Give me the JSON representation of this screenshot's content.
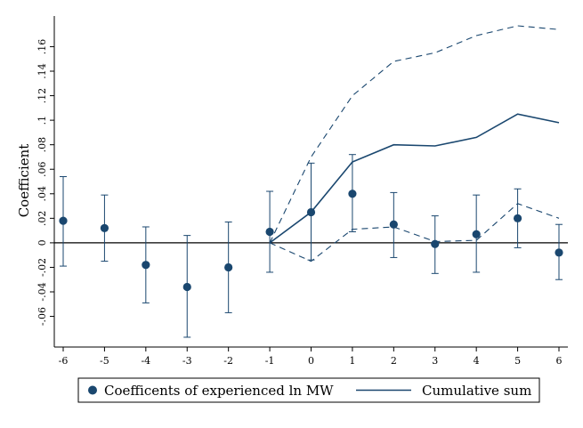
{
  "chart_data": {
    "type": "scatter",
    "title": "",
    "ylabel": "Coefficient",
    "xlabel": "",
    "x": [
      -6,
      -5,
      -4,
      -3,
      -2,
      -1,
      0,
      1,
      2,
      3,
      4,
      5,
      6
    ],
    "xlim": [
      -6,
      6
    ],
    "ylim": [
      -0.085,
      0.185
    ],
    "xticks": [
      "-6",
      "-5",
      "-4",
      "-3",
      "-2",
      "-1",
      "0",
      "1",
      "2",
      "3",
      "4",
      "5",
      "6"
    ],
    "yticks": [
      {
        "value": -0.06,
        "label": "-.06"
      },
      {
        "value": -0.04,
        "label": "-.04"
      },
      {
        "value": -0.02,
        "label": "-.02"
      },
      {
        "value": 0,
        "label": "0"
      },
      {
        "value": 0.02,
        "label": ".02"
      },
      {
        "value": 0.04,
        "label": ".04"
      },
      {
        "value": 0.06,
        "label": ".06"
      },
      {
        "value": 0.08,
        "label": ".08"
      },
      {
        "value": 0.1,
        "label": ".1"
      },
      {
        "value": 0.12,
        "label": ".12"
      },
      {
        "value": 0.14,
        "label": ".14"
      },
      {
        "value": 0.16,
        "label": ".16"
      }
    ],
    "grid": false,
    "zero_line": true,
    "colors": {
      "series": "#1a476f",
      "zero_line": "#000000"
    },
    "series": [
      {
        "name": "Coefficents of experienced ln MW",
        "kind": "point-with-ci",
        "values": [
          0.018,
          0.012,
          -0.018,
          -0.036,
          -0.02,
          0.009,
          0.025,
          0.04,
          0.015,
          -0.001,
          0.007,
          0.02,
          -0.008
        ],
        "ci_low": [
          -0.019,
          -0.015,
          -0.049,
          -0.077,
          -0.057,
          -0.024,
          -0.014,
          0.009,
          -0.012,
          -0.025,
          -0.024,
          -0.004,
          -0.03
        ],
        "ci_high": [
          0.054,
          0.039,
          0.013,
          0.006,
          0.017,
          0.042,
          0.065,
          0.072,
          0.041,
          0.022,
          0.039,
          0.044,
          0.015
        ]
      },
      {
        "name": "Cumulative sum",
        "kind": "line",
        "x": [
          -1,
          0,
          1,
          2,
          3,
          4,
          5,
          6
        ],
        "values": [
          0.0,
          0.025,
          0.066,
          0.08,
          0.079,
          0.086,
          0.105,
          0.098
        ],
        "ci_low": [
          0.0,
          -0.015,
          0.011,
          0.013,
          0.001,
          0.002,
          0.032,
          0.02
        ],
        "ci_high": [
          0.0,
          0.07,
          0.12,
          0.148,
          0.155,
          0.169,
          0.177,
          0.174
        ]
      }
    ],
    "legend": {
      "position": "bottom",
      "entries": [
        "Coefficents of experienced ln MW",
        "Cumulative sum"
      ]
    }
  }
}
